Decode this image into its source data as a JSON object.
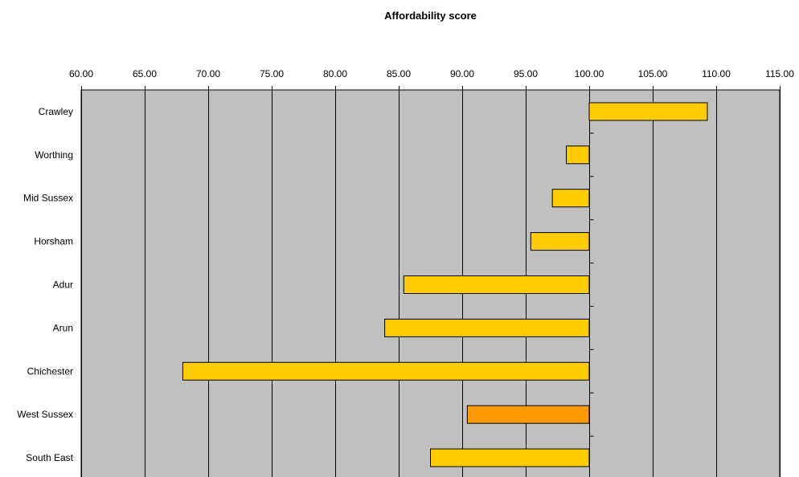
{
  "chart_data": {
    "type": "bar",
    "orientation": "horizontal",
    "title": "Affordability score",
    "xlabel": "",
    "ylabel": "",
    "xlim": [
      60,
      115
    ],
    "x_ticks": [
      "60.00",
      "65.00",
      "70.00",
      "75.00",
      "80.00",
      "85.00",
      "90.00",
      "95.00",
      "100.00",
      "105.00",
      "110.00",
      "115.00"
    ],
    "baseline": 100,
    "categories": [
      "Crawley",
      "Worthing",
      "Mid Sussex",
      "Horsham",
      "Adur",
      "Arun",
      "Chichester",
      "West Sussex",
      "South East"
    ],
    "values": [
      109.3,
      98.2,
      97.1,
      95.4,
      85.4,
      83.9,
      68.0,
      90.4,
      87.5
    ],
    "bar_colors": [
      "#ffcc00",
      "#ffcc00",
      "#ffcc00",
      "#ffcc00",
      "#ffcc00",
      "#ffcc00",
      "#ffcc00",
      "#ff9900",
      "#ffcc00"
    ],
    "plot_background": "#c0c0c0",
    "grid": "vertical"
  }
}
